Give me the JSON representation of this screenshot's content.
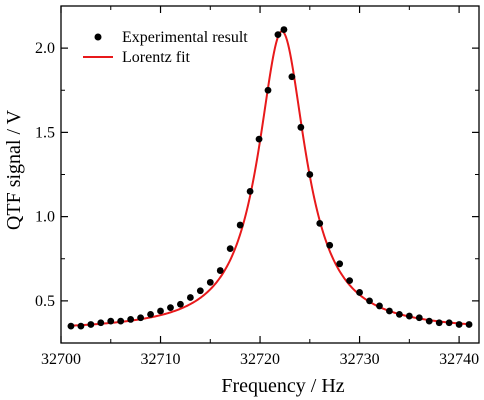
{
  "chart_data": {
    "type": "scatter",
    "xlabel": "Frequency / Hz",
    "ylabel": "QTF signal / V",
    "xlim": [
      32700,
      32742
    ],
    "ylim": [
      0.25,
      2.25
    ],
    "xticks": [
      32700,
      32710,
      32720,
      32730,
      32740
    ],
    "yticks": [
      0.5,
      1.0,
      1.5,
      2.0
    ],
    "xtick_labels": [
      "32700",
      "32710",
      "32720",
      "32730",
      "32740"
    ],
    "ytick_labels": [
      "0.5",
      "1.0",
      "1.5",
      "2.0"
    ],
    "grid": false,
    "legend_position": "top-left",
    "series": [
      {
        "name": "Experimental result",
        "kind": "scatter",
        "color": "#000000",
        "points": [
          [
            32701,
            0.35
          ],
          [
            32702,
            0.35
          ],
          [
            32703,
            0.36
          ],
          [
            32704,
            0.37
          ],
          [
            32705,
            0.38
          ],
          [
            32706,
            0.38
          ],
          [
            32707,
            0.39
          ],
          [
            32708,
            0.4
          ],
          [
            32709,
            0.42
          ],
          [
            32710,
            0.44
          ],
          [
            32711,
            0.46
          ],
          [
            32712,
            0.48
          ],
          [
            32713,
            0.52
          ],
          [
            32714,
            0.56
          ],
          [
            32715,
            0.61
          ],
          [
            32716,
            0.68
          ],
          [
            32717,
            0.81
          ],
          [
            32718,
            0.95
          ],
          [
            32719,
            1.15
          ],
          [
            32719.9,
            1.46
          ],
          [
            32720.8,
            1.75
          ],
          [
            32721.8,
            2.08
          ],
          [
            32722.4,
            2.11
          ],
          [
            32723.2,
            1.83
          ],
          [
            32724.1,
            1.53
          ],
          [
            32725,
            1.25
          ],
          [
            32726,
            0.96
          ],
          [
            32727,
            0.83
          ],
          [
            32728,
            0.72
          ],
          [
            32729,
            0.62
          ],
          [
            32730,
            0.55
          ],
          [
            32731,
            0.5
          ],
          [
            32732,
            0.47
          ],
          [
            32733,
            0.44
          ],
          [
            32734,
            0.42
          ],
          [
            32735,
            0.41
          ],
          [
            32736,
            0.4
          ],
          [
            32737,
            0.38
          ],
          [
            32738,
            0.37
          ],
          [
            32739,
            0.37
          ],
          [
            32740,
            0.36
          ],
          [
            32741,
            0.36
          ]
        ]
      },
      {
        "name": "Lorentz fit",
        "kind": "line",
        "color": "#e8191b",
        "model": "lorentzian",
        "params": {
          "center": 32722.2,
          "fwhm": 5.8,
          "peak": 1.78,
          "baseline": 0.32
        }
      }
    ]
  }
}
